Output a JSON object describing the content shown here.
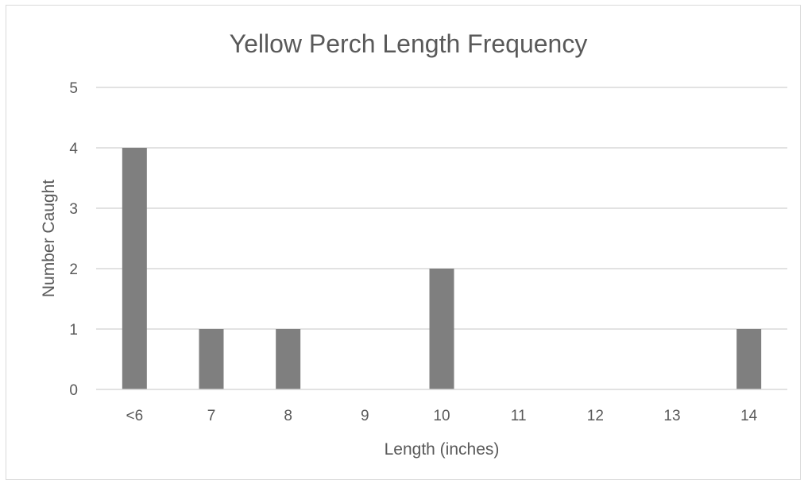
{
  "chart_data": {
    "type": "bar",
    "title": "Yellow Perch Length Frequency",
    "xlabel": "Length (inches)",
    "ylabel": "Number Caught",
    "categories": [
      "<6",
      "7",
      "8",
      "9",
      "10",
      "11",
      "12",
      "13",
      "14"
    ],
    "values": [
      4,
      1,
      1,
      0,
      2,
      0,
      0,
      0,
      1
    ],
    "ylim": [
      0,
      5
    ],
    "yticks": [
      "0",
      "1",
      "2",
      "3",
      "4",
      "5"
    ],
    "grid": true,
    "legend": "none",
    "bar_color": "#7f7f7f",
    "grid_color": "#d9d9d9",
    "text_color": "#595959"
  }
}
